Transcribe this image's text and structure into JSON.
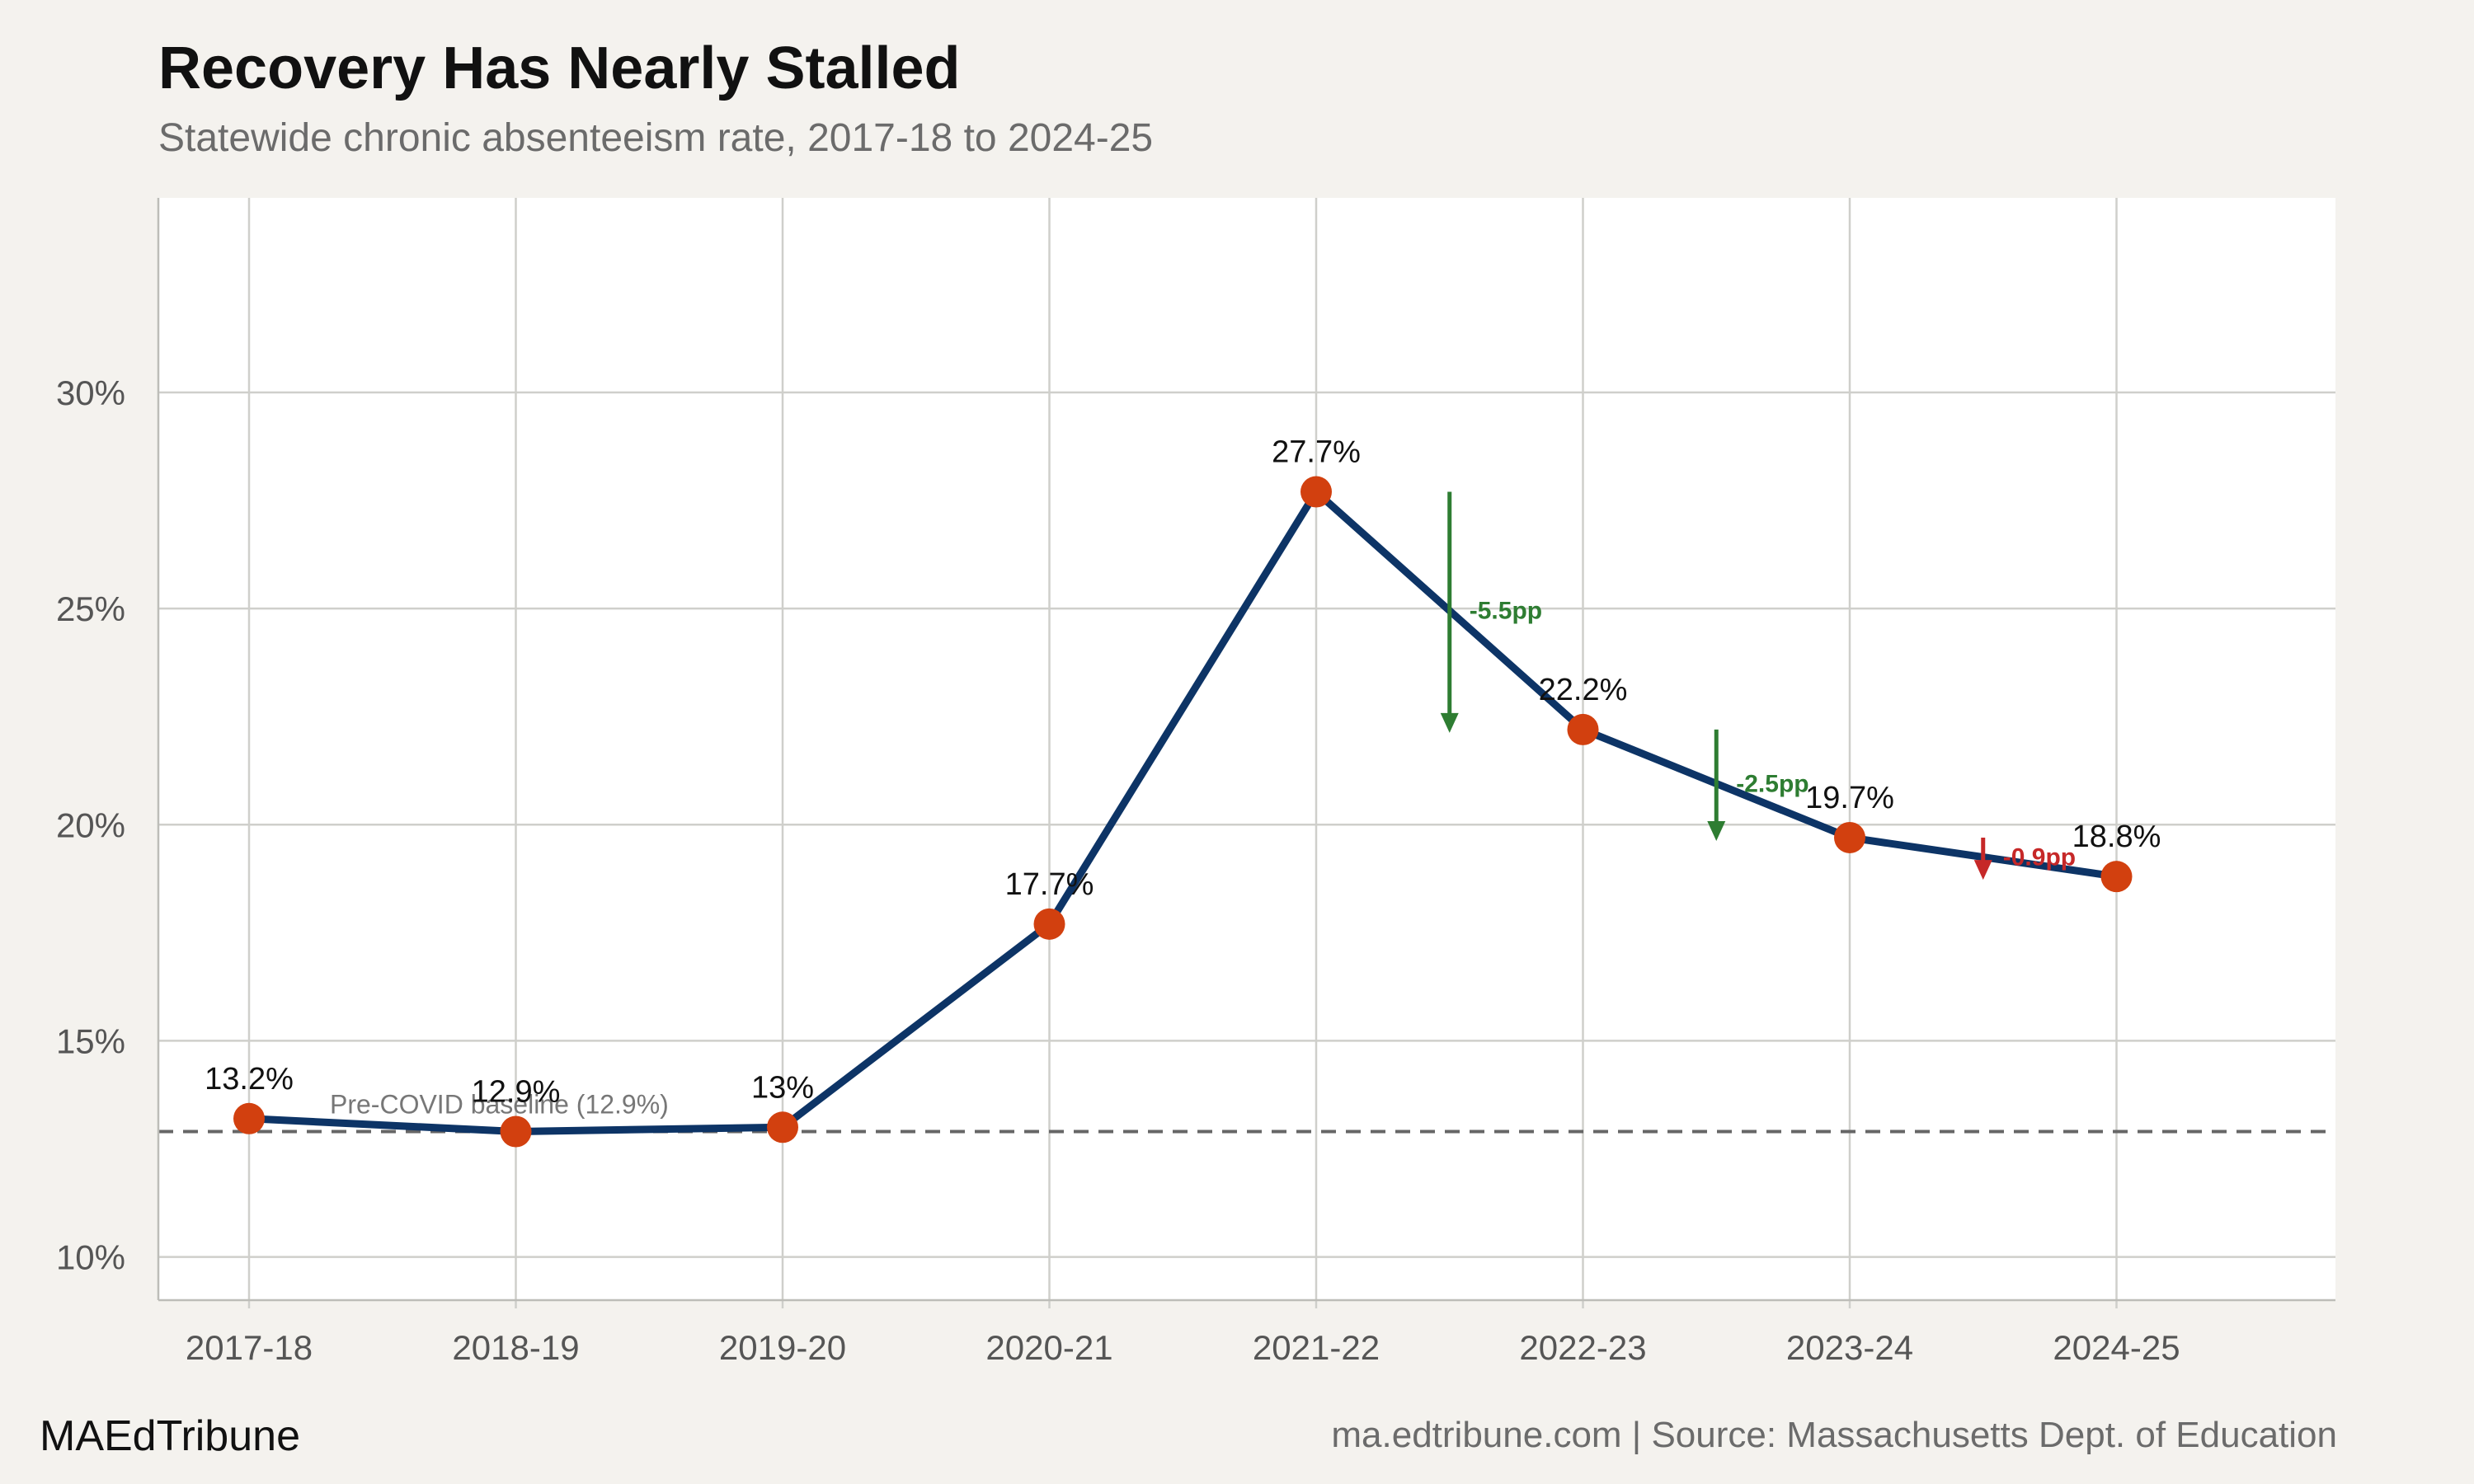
{
  "header": {
    "title": "Recovery Has Nearly Stalled",
    "subtitle": "Statewide chronic absenteeism rate, 2017-18 to 2024-25"
  },
  "footer": {
    "brand": "MAEdTribune",
    "source": "ma.edtribune.com | Source: Massachusetts Dept. of Education"
  },
  "colors": {
    "line": "#0d3466",
    "point": "#d2400f",
    "decrease_large": "#2e7d32",
    "decrease_small": "#c62828",
    "baseline": "#666666",
    "grid": "#cfcfcb",
    "panel": "#ffffff"
  },
  "chart_data": {
    "type": "line",
    "title": "Recovery Has Nearly Stalled",
    "subtitle": "Statewide chronic absenteeism rate, 2017-18 to 2024-25",
    "xlabel": "",
    "ylabel": "",
    "categories": [
      "2017-18",
      "2018-19",
      "2019-20",
      "2020-21",
      "2021-22",
      "2022-23",
      "2023-24",
      "2024-25"
    ],
    "values": [
      13.2,
      12.9,
      13.0,
      17.7,
      27.7,
      22.2,
      19.7,
      18.8
    ],
    "value_labels": [
      "13.2%",
      "12.9%",
      "13%",
      "17.7%",
      "27.7%",
      "22.2%",
      "19.7%",
      "18.8%"
    ],
    "ylim": [
      9.0,
      34.5
    ],
    "yticks": [
      10,
      15,
      20,
      25,
      30
    ],
    "ytick_labels": [
      "10%",
      "15%",
      "20%",
      "25%",
      "30%"
    ],
    "grid": true,
    "baseline": {
      "value": 12.9,
      "label": "Pre-COVID baseline (12.9%)"
    },
    "annotations": [
      {
        "from_index": 4,
        "to_index": 5,
        "from": 27.7,
        "to": 22.2,
        "label": "-5.5pp",
        "color": "#2e7d32"
      },
      {
        "from_index": 5,
        "to_index": 6,
        "from": 22.2,
        "to": 19.7,
        "label": "-2.5pp",
        "color": "#2e7d32"
      },
      {
        "from_index": 6,
        "to_index": 7,
        "from": 19.7,
        "to": 18.8,
        "label": "-0.9pp",
        "color": "#c62828"
      }
    ]
  }
}
